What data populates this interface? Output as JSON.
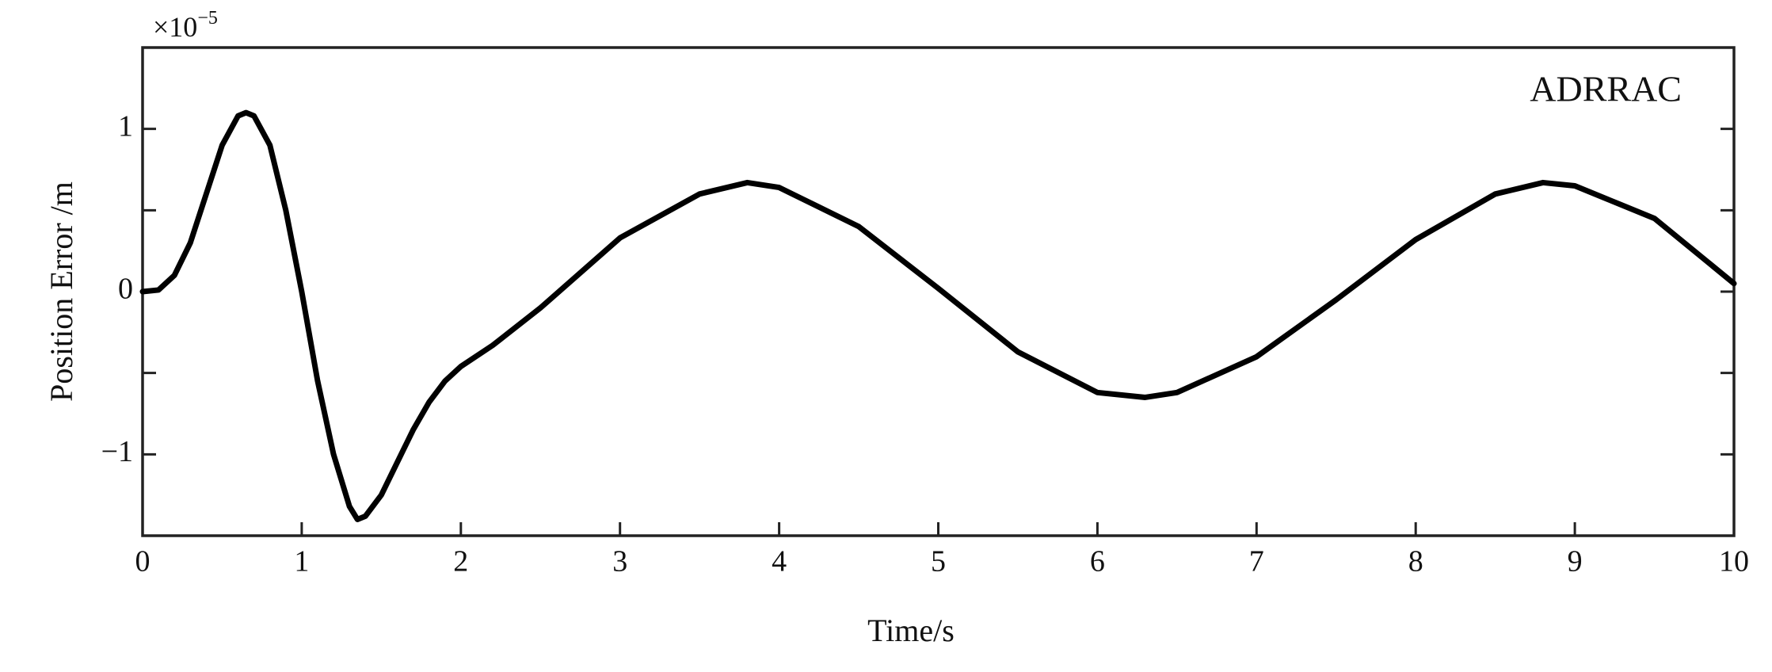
{
  "chart_data": {
    "type": "line",
    "x_label": "Time/s",
    "y_label": "Position Error /m",
    "y_multiplier": {
      "base": "×10",
      "exponent": "−5"
    },
    "x": [
      0,
      0.1,
      0.2,
      0.3,
      0.4,
      0.5,
      0.6,
      0.65,
      0.7,
      0.8,
      0.9,
      1.0,
      1.1,
      1.2,
      1.3,
      1.35,
      1.4,
      1.5,
      1.6,
      1.7,
      1.8,
      1.9,
      2.0,
      2.2,
      2.5,
      3.0,
      3.5,
      3.8,
      4.0,
      4.5,
      5.0,
      5.5,
      6.0,
      6.3,
      6.5,
      7.0,
      7.5,
      8.0,
      8.5,
      8.8,
      9.0,
      9.5,
      10.0
    ],
    "series": [
      {
        "name": "ADRRAC",
        "color": "#000000",
        "values": [
          0,
          0.01,
          0.1,
          0.3,
          0.6,
          0.9,
          1.08,
          1.1,
          1.08,
          0.9,
          0.5,
          0.0,
          -0.55,
          -1.0,
          -1.32,
          -1.4,
          -1.38,
          -1.25,
          -1.05,
          -0.85,
          -0.68,
          -0.55,
          -0.46,
          -0.33,
          -0.1,
          0.33,
          0.6,
          0.67,
          0.64,
          0.4,
          0.02,
          -0.37,
          -0.62,
          -0.65,
          -0.62,
          -0.4,
          -0.05,
          0.32,
          0.6,
          0.67,
          0.65,
          0.45,
          0.05
        ]
      }
    ],
    "xlim": [
      0,
      10
    ],
    "xticks": [
      0,
      1,
      2,
      3,
      4,
      5,
      6,
      7,
      8,
      9,
      10
    ],
    "ylim": [
      -1.5,
      1.5
    ],
    "yticks": [
      {
        "value": -1,
        "label": "−1"
      },
      0,
      1
    ],
    "yminorticks": [
      -0.5,
      0.5
    ],
    "grid": false
  }
}
